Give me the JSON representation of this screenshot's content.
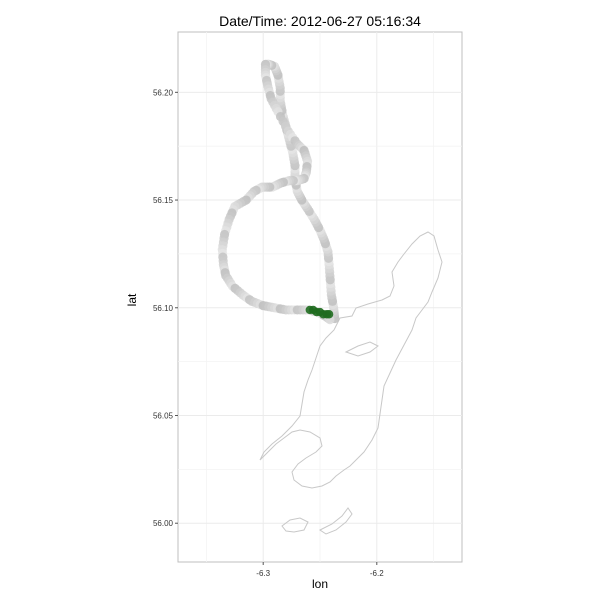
{
  "title": "Date/Time: 2012-06-27 05:16:34",
  "chart_data": {
    "type": "scatter",
    "title": "Date/Time: 2012-06-27 05:16:34",
    "xlabel": "lon",
    "ylabel": "lat",
    "xlim": [
      -6.375,
      -6.125
    ],
    "ylim": [
      55.982,
      56.228
    ],
    "x_ticks": [
      "-6.3",
      "-6.2"
    ],
    "y_ticks": [
      "56.00",
      "56.05",
      "56.10",
      "56.15",
      "56.20"
    ],
    "grid": true,
    "legend": "none",
    "colors": {
      "track": "#c8c8c8",
      "current_position": "#1f6b1f",
      "coastline": "#c8c8c8",
      "panel_border": "#bfbfbf",
      "grid": "#ebebeb"
    },
    "series": [
      {
        "values": [
          [
            -6.237,
            56.095
          ],
          [
            -6.238,
            56.1
          ],
          [
            -6.24,
            56.106
          ],
          [
            -6.241,
            56.113
          ],
          [
            -6.242,
            56.12
          ],
          [
            -6.243,
            56.126
          ],
          [
            -6.246,
            56.131
          ],
          [
            -6.25,
            56.136
          ],
          [
            -6.255,
            56.141
          ],
          [
            -6.261,
            56.146
          ],
          [
            -6.266,
            56.15
          ],
          [
            -6.27,
            56.154
          ],
          [
            -6.272,
            56.16
          ],
          [
            -6.272,
            56.166
          ],
          [
            -6.274,
            56.172
          ],
          [
            -6.277,
            56.178
          ],
          [
            -6.28,
            56.184
          ],
          [
            -6.283,
            56.19
          ],
          [
            -6.285,
            56.196
          ],
          [
            -6.285,
            56.202
          ],
          [
            -6.287,
            56.208
          ],
          [
            -6.29,
            56.212
          ],
          [
            -6.295,
            56.213
          ],
          [
            -6.298,
            56.213
          ],
          [
            -6.298,
            56.208
          ],
          [
            -6.296,
            56.203
          ],
          [
            -6.293,
            56.197
          ],
          [
            -6.287,
            56.191
          ],
          [
            -6.278,
            56.182
          ],
          [
            -6.27,
            56.176
          ],
          [
            -6.264,
            56.173
          ],
          [
            -6.261,
            56.168
          ],
          [
            -6.262,
            56.163
          ],
          [
            -6.264,
            56.16
          ],
          [
            -6.27,
            56.159
          ],
          [
            -6.277,
            56.159
          ],
          [
            -6.284,
            56.158
          ],
          [
            -6.292,
            56.156
          ],
          [
            -6.301,
            56.156
          ],
          [
            -6.308,
            56.154
          ],
          [
            -6.315,
            56.15
          ],
          [
            -6.325,
            56.147
          ],
          [
            -6.33,
            56.141
          ],
          [
            -6.334,
            56.134
          ],
          [
            -6.336,
            56.127
          ],
          [
            -6.335,
            56.12
          ],
          [
            -6.333,
            56.115
          ],
          [
            -6.327,
            56.11
          ],
          [
            -6.318,
            56.106
          ],
          [
            -6.31,
            56.103
          ],
          [
            -6.3,
            56.101
          ],
          [
            -6.29,
            56.1
          ],
          [
            -6.28,
            56.099
          ],
          [
            -6.27,
            56.099
          ],
          [
            -6.26,
            56.099
          ],
          [
            -6.252,
            56.098
          ],
          [
            -6.245,
            56.096
          ],
          [
            -6.24,
            56.094
          ]
        ]
      },
      {
        "values": [
          [
            -6.259,
            56.099
          ],
          [
            -6.256,
            56.099
          ],
          [
            -6.253,
            56.098
          ],
          [
            -6.25,
            56.098
          ],
          [
            -6.247,
            56.097
          ],
          [
            -6.244,
            56.097
          ],
          [
            -6.242,
            56.097
          ]
        ]
      }
    ]
  }
}
